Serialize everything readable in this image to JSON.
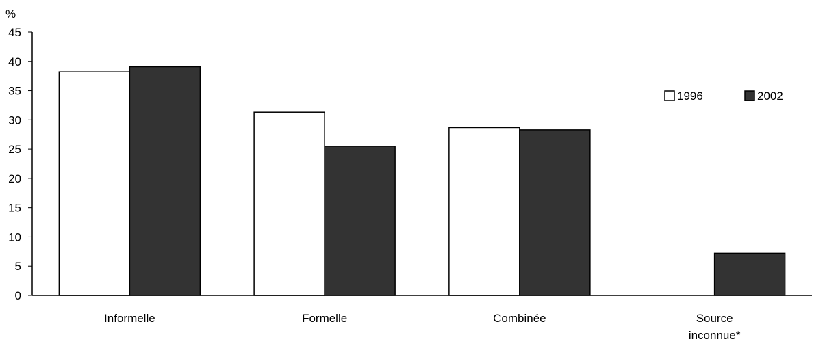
{
  "chart_data": {
    "type": "bar",
    "ylabel": "%",
    "ylim": [
      0,
      45
    ],
    "yticks": [
      0,
      5,
      10,
      15,
      20,
      25,
      30,
      35,
      40,
      45
    ],
    "categories": [
      [
        "Informelle"
      ],
      [
        "Formelle"
      ],
      [
        "Combinée"
      ],
      [
        "Source",
        "inconnue*"
      ]
    ],
    "series": [
      {
        "name": "1996",
        "values": [
          38.2,
          31.3,
          28.7,
          null
        ],
        "color": "#ffffff"
      },
      {
        "name": "2002",
        "values": [
          39.1,
          25.5,
          28.3,
          7.2
        ],
        "color": "#333333"
      }
    ],
    "legend_position": "top-right",
    "grid": false
  }
}
